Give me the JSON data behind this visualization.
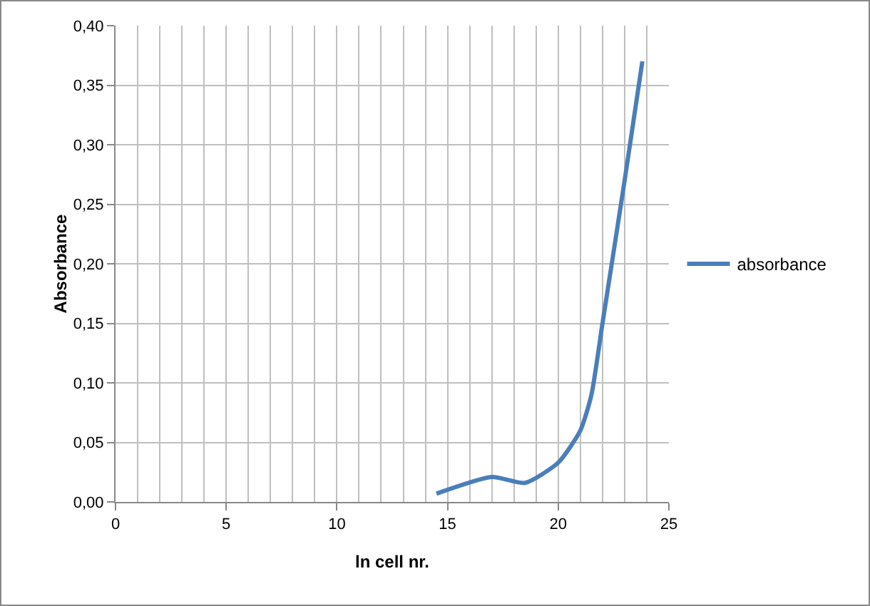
{
  "chart_data": {
    "type": "line",
    "xlabel": "ln cell nr.",
    "ylabel": "Absorbance",
    "x": [
      14.5,
      17,
      18.5,
      20,
      21,
      21.5,
      22,
      23,
      23.8
    ],
    "series": [
      {
        "name": "absorbance",
        "color": "#4a7ebb",
        "values": [
          0.007,
          0.021,
          0.016,
          0.033,
          0.06,
          0.09,
          0.15,
          0.27,
          0.37
        ]
      }
    ],
    "xlim": [
      0,
      25
    ],
    "xticks": [
      0,
      5,
      10,
      15,
      20,
      25
    ],
    "ylim": [
      0,
      0.4
    ],
    "yticks": [
      {
        "value": 0,
        "label": "0,00"
      },
      {
        "value": 0.05,
        "label": "0,05"
      },
      {
        "value": 0.1,
        "label": "0,10"
      },
      {
        "value": 0.15,
        "label": "0,15"
      },
      {
        "value": 0.2,
        "label": "0,20"
      },
      {
        "value": 0.25,
        "label": "0,25"
      },
      {
        "value": 0.3,
        "label": "0,30"
      },
      {
        "value": 0.35,
        "label": "0,35"
      },
      {
        "value": 0.4,
        "label": "0,40"
      }
    ],
    "grid": true,
    "legend": "right",
    "marker": "none",
    "line_style": "solid"
  }
}
